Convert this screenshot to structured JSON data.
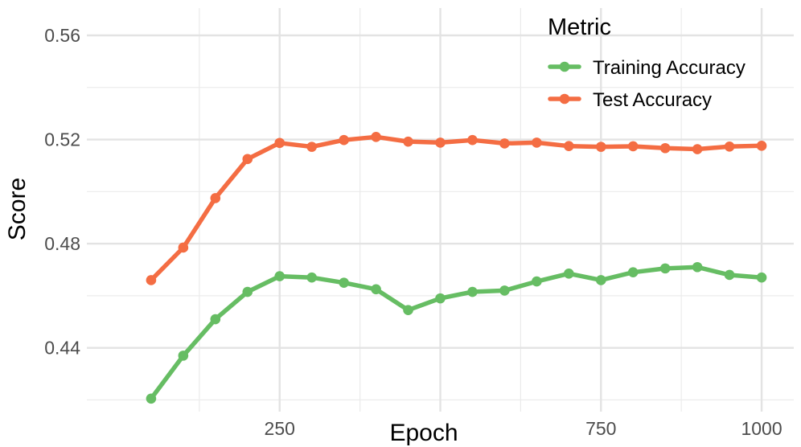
{
  "chart_data": {
    "type": "line",
    "xlabel": "Epoch",
    "ylabel": "Score",
    "xlim": [
      -50,
      1050
    ],
    "ylim": [
      0.4155,
      0.5705
    ],
    "x_ticks": [
      250,
      750,
      1000
    ],
    "x_tick_labels": [
      "250",
      "750",
      "1000"
    ],
    "x_major_grid": [
      250,
      500,
      750,
      1000
    ],
    "x_minor_grid": [
      125,
      375,
      625,
      875
    ],
    "y_ticks": [
      0.44,
      0.48,
      0.52,
      0.56
    ],
    "y_tick_labels": [
      "0.44",
      "0.48",
      "0.52",
      "0.56"
    ],
    "y_minor_grid": [
      0.42,
      0.46,
      0.5,
      0.54
    ],
    "grid": true,
    "legend": {
      "title": "Metric",
      "placement": "top-right",
      "entries": [
        "Training Accuracy",
        "Test Accuracy"
      ]
    },
    "x": [
      50,
      100,
      150,
      200,
      250,
      300,
      350,
      400,
      450,
      500,
      550,
      600,
      650,
      700,
      750,
      800,
      850,
      900,
      950,
      1000
    ],
    "series": [
      {
        "name": "Training Accuracy",
        "color": "#66bd63",
        "values": [
          0.4205,
          0.437,
          0.451,
          0.4615,
          0.4675,
          0.467,
          0.465,
          0.4625,
          0.4545,
          0.459,
          0.4615,
          0.462,
          0.4655,
          0.4685,
          0.466,
          0.469,
          0.4705,
          0.471,
          0.468,
          0.467
        ]
      },
      {
        "name": "Test Accuracy",
        "color": "#f46d43",
        "values": [
          0.466,
          0.4785,
          0.4975,
          0.5125,
          0.5187,
          0.5172,
          0.5198,
          0.521,
          0.5192,
          0.5188,
          0.5198,
          0.5185,
          0.5188,
          0.5175,
          0.5172,
          0.5174,
          0.5167,
          0.5163,
          0.5173,
          0.5176
        ]
      }
    ]
  }
}
